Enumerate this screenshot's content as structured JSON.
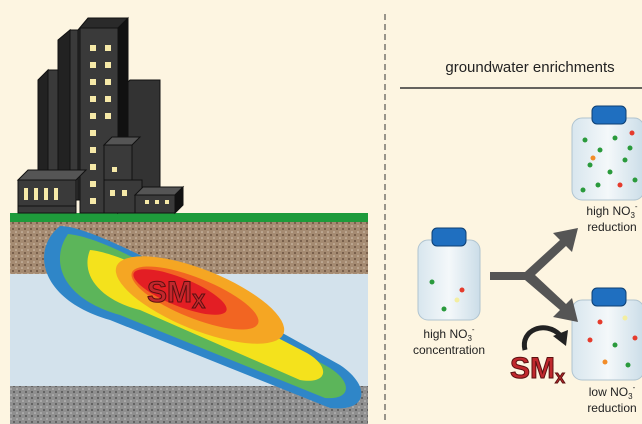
{
  "panel_title": "groundwater enrichments",
  "plume_label": {
    "text": "SM",
    "sub": "X"
  },
  "arrow_label": {
    "text": "SM",
    "sub": "X"
  },
  "jars": [
    {
      "text": "high NO",
      "sub": "3",
      "sup": "-",
      "line2": "concentration"
    },
    {
      "text": "high NO",
      "sub": "3",
      "sup": "-",
      "line2": "reduction"
    },
    {
      "text": "low NO",
      "sub": "3",
      "sup": "-",
      "line2": "reduction"
    }
  ]
}
